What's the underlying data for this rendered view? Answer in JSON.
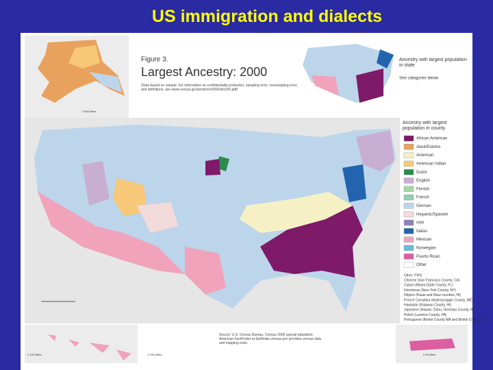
{
  "slide_title": "US immigration and dialects",
  "figure": {
    "label": "Figure 3.",
    "title": "Largest Ancestry: 2000",
    "note": "(Data based on sample. For information on confidentiality protection, sampling error, nonsampling error, and definitions, see www.census.gov/prod/cen2000/doc/sf3.pdf)"
  },
  "state_legend": {
    "title": "Ancestry with largest population in state",
    "subtitle": "See categories below"
  },
  "county_legend": {
    "title": "Ancestry with largest population in county",
    "items": [
      {
        "label": "African American",
        "color": "#7e1a68"
      },
      {
        "label": "Aleut/Eskimo",
        "color": "#e9a25e"
      },
      {
        "label": "American",
        "color": "#f6f1c4"
      },
      {
        "label": "American Indian",
        "color": "#f7c878"
      },
      {
        "label": "Dutch",
        "color": "#2b8a4c"
      },
      {
        "label": "English",
        "color": "#c9aed3"
      },
      {
        "label": "Finnish",
        "color": "#a6d7a5"
      },
      {
        "label": "French",
        "color": "#8fcfb2"
      },
      {
        "label": "German",
        "color": "#bcd5ea"
      },
      {
        "label": "Hispanic/Spanish",
        "color": "#f3dadb"
      },
      {
        "label": "Irish",
        "color": "#8f80bf"
      },
      {
        "label": "Italian",
        "color": "#2364ae"
      },
      {
        "label": "Mexican",
        "color": "#f1a3bb"
      },
      {
        "label": "Norwegian",
        "color": "#6fb8d8"
      },
      {
        "label": "Puerto Rican",
        "color": "#dd5fa2"
      },
      {
        "label": "Other",
        "color": "#ffffff"
      }
    ]
  },
  "notes": [
    "Other: FIPS",
    "Chinese (San Francisco County, CA)",
    "Cuban (Miami-Dade County, FL)",
    "Dominican (New York County, NY)",
    "Filipino (Kauai and Maui counties, HI)",
    "French Canadian (Androscoggin County, ME)",
    "Hawaiian (Kalawao County, HI)",
    "Japanese (Hawaii, Oahu, Honolulu County, HI)",
    "Polish (Luzerne County, PA)",
    "Portuguese (Bristol County MA and Bristol County, RI)"
  ],
  "source": "Source: U.S. Census Bureau, Census 2000 special tabulation. American FactFinder at factfinder.census.gov provides census data and mapping tools.",
  "scales": {
    "alaska": "0   500 Miles",
    "hawaii": "0   100 Miles",
    "mainland": "0   250 Miles",
    "puerto_rico": "0   50 Miles"
  }
}
